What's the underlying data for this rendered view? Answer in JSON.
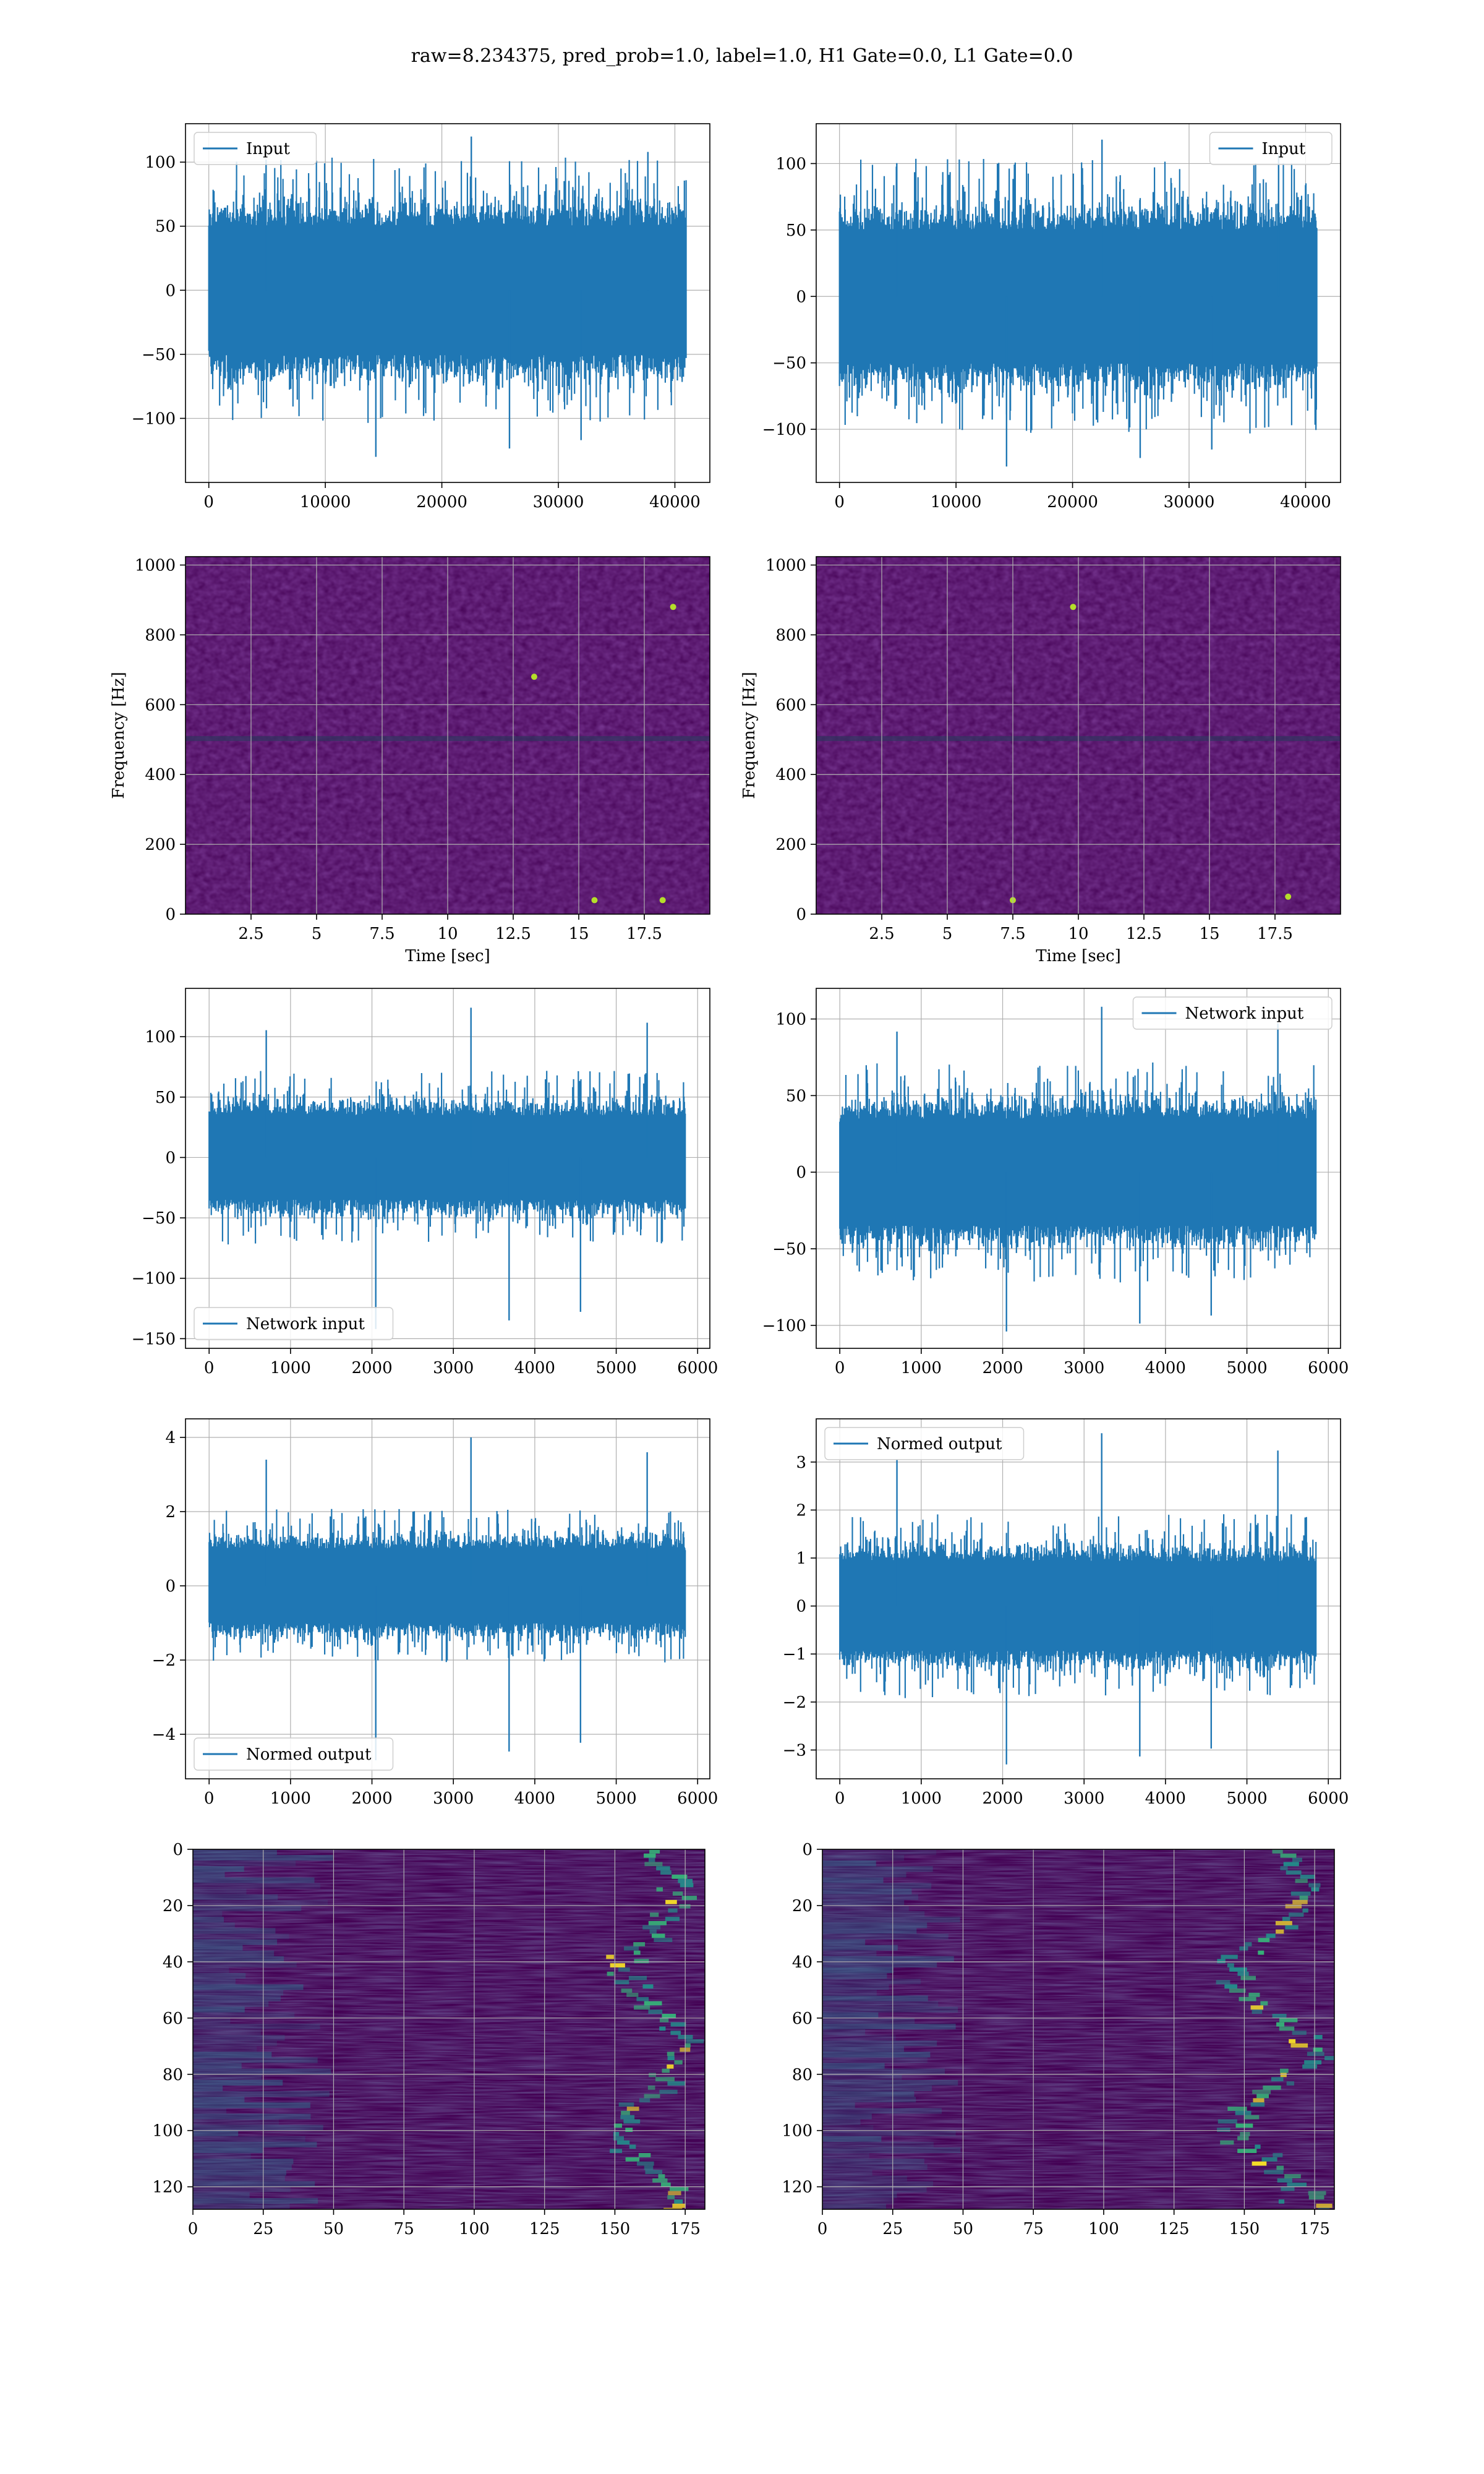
{
  "figure": {
    "suptitle": "raw=8.234375, pred_prob=1.0, label=1.0, H1 Gate=0.0, L1 Gate=0.0",
    "line_color": "#1f77b4",
    "grid_color": "#b0b0b0"
  },
  "chart_data": [
    {
      "type": "line",
      "panel": "row1-left",
      "series": [
        {
          "name": "Input",
          "x_range": [
            0,
            40960
          ],
          "y_core": [
            -65,
            65
          ],
          "y_extremes": [
            -130,
            120
          ]
        }
      ],
      "xlim": [
        -2000,
        43000
      ],
      "ylim": [
        -150,
        130
      ],
      "xticks": [
        0,
        10000,
        20000,
        30000,
        40000
      ],
      "yticks": [
        100,
        50,
        0,
        -50,
        -100
      ],
      "legend": "upper left",
      "grid": true,
      "xlabel": "",
      "ylabel": ""
    },
    {
      "type": "line",
      "panel": "row1-right",
      "series": [
        {
          "name": "Input",
          "x_range": [
            0,
            40960
          ],
          "y_core": [
            -65,
            65
          ],
          "y_extremes": [
            -128,
            118
          ]
        }
      ],
      "xlim": [
        -2000,
        43000
      ],
      "ylim": [
        -140,
        130
      ],
      "xticks": [
        0,
        10000,
        20000,
        30000,
        40000
      ],
      "yticks": [
        100,
        50,
        0,
        -50,
        -100
      ],
      "legend": "upper right",
      "grid": true,
      "xlabel": "",
      "ylabel": ""
    },
    {
      "type": "heatmap",
      "panel": "row2-left",
      "xlabel": "Time [sec]",
      "ylabel": "Frequency [Hz]",
      "xlim": [
        0,
        20
      ],
      "ylim": [
        0,
        1024
      ],
      "xticks": [
        2.5,
        5.0,
        7.5,
        10.0,
        12.5,
        15.0,
        17.5
      ],
      "yticks": [
        1000,
        800,
        600,
        400,
        200,
        0
      ],
      "colormap": "viridis",
      "grid": true,
      "bright_spots": [
        [
          15.6,
          40
        ],
        [
          18.2,
          40
        ],
        [
          13.3,
          680
        ],
        [
          18.6,
          880
        ]
      ]
    },
    {
      "type": "heatmap",
      "panel": "row2-right",
      "xlabel": "Time [sec]",
      "ylabel": "Frequency [Hz]",
      "xlim": [
        0,
        20
      ],
      "ylim": [
        0,
        1024
      ],
      "xticks": [
        2.5,
        5.0,
        7.5,
        10.0,
        12.5,
        15.0,
        17.5
      ],
      "yticks": [
        1000,
        800,
        600,
        400,
        200,
        0
      ],
      "colormap": "viridis",
      "grid": true,
      "bright_spots": [
        [
          18.0,
          50
        ],
        [
          7.5,
          40
        ],
        [
          9.8,
          880
        ]
      ]
    },
    {
      "type": "line",
      "panel": "row3-left",
      "series": [
        {
          "name": "Network input",
          "x_range": [
            0,
            5848
          ],
          "y_core": [
            -45,
            45
          ],
          "y_extremes": [
            -142,
            124
          ]
        }
      ],
      "xlim": [
        -290,
        6150
      ],
      "ylim": [
        -158,
        140
      ],
      "xticks": [
        0,
        1000,
        2000,
        3000,
        4000,
        5000,
        6000
      ],
      "yticks": [
        100,
        50,
        0,
        -50,
        -100,
        -150
      ],
      "legend": "lower left",
      "grid": true,
      "xlabel": "",
      "ylabel": ""
    },
    {
      "type": "line",
      "panel": "row3-right",
      "series": [
        {
          "name": "Network input",
          "x_range": [
            0,
            5848
          ],
          "y_core": [
            -45,
            45
          ],
          "y_extremes": [
            -104,
            108
          ]
        }
      ],
      "xlim": [
        -290,
        6150
      ],
      "ylim": [
        -115,
        120
      ],
      "xticks": [
        0,
        1000,
        2000,
        3000,
        4000,
        5000,
        6000
      ],
      "yticks": [
        100,
        50,
        0,
        -50,
        -100
      ],
      "legend": "upper right",
      "grid": true,
      "xlabel": "",
      "ylabel": ""
    },
    {
      "type": "line",
      "panel": "row4-left",
      "series": [
        {
          "name": "Normed output",
          "x_range": [
            0,
            5848
          ],
          "y_core": [
            -1.3,
            1.3
          ],
          "y_extremes": [
            -4.7,
            4.0
          ]
        }
      ],
      "xlim": [
        -290,
        6150
      ],
      "ylim": [
        -5.2,
        4.5
      ],
      "xticks": [
        0,
        1000,
        2000,
        3000,
        4000,
        5000,
        6000
      ],
      "yticks": [
        4,
        2,
        0,
        -2,
        -4
      ],
      "legend": "lower left",
      "grid": true,
      "xlabel": "",
      "ylabel": ""
    },
    {
      "type": "line",
      "panel": "row4-right",
      "series": [
        {
          "name": "Normed output",
          "x_range": [
            0,
            5848
          ],
          "y_core": [
            -1.2,
            1.2
          ],
          "y_extremes": [
            -3.3,
            3.6
          ]
        }
      ],
      "xlim": [
        -290,
        6150
      ],
      "ylim": [
        -3.6,
        3.9
      ],
      "xticks": [
        0,
        1000,
        2000,
        3000,
        4000,
        5000,
        6000
      ],
      "yticks": [
        3,
        2,
        1,
        0,
        -1,
        -2,
        -3
      ],
      "legend": "upper left",
      "grid": true,
      "xlabel": "",
      "ylabel": ""
    },
    {
      "type": "heatmap",
      "panel": "row5-left",
      "xlim": [
        0,
        182
      ],
      "ylim": [
        128,
        0
      ],
      "xticks": [
        0,
        25,
        50,
        75,
        100,
        125,
        150,
        175
      ],
      "yticks": [
        0,
        20,
        40,
        60,
        80,
        100,
        120
      ],
      "colormap": "viridis",
      "grid": true,
      "bright_band_x": [
        155,
        175
      ],
      "xlabel": "",
      "ylabel": ""
    },
    {
      "type": "heatmap",
      "panel": "row5-right",
      "xlim": [
        0,
        182
      ],
      "ylim": [
        128,
        0
      ],
      "xticks": [
        0,
        25,
        50,
        75,
        100,
        125,
        150,
        175
      ],
      "yticks": [
        0,
        20,
        40,
        60,
        80,
        100,
        120
      ],
      "colormap": "viridis",
      "grid": true,
      "bright_band_x": [
        150,
        175
      ],
      "xlabel": "",
      "ylabel": ""
    }
  ]
}
